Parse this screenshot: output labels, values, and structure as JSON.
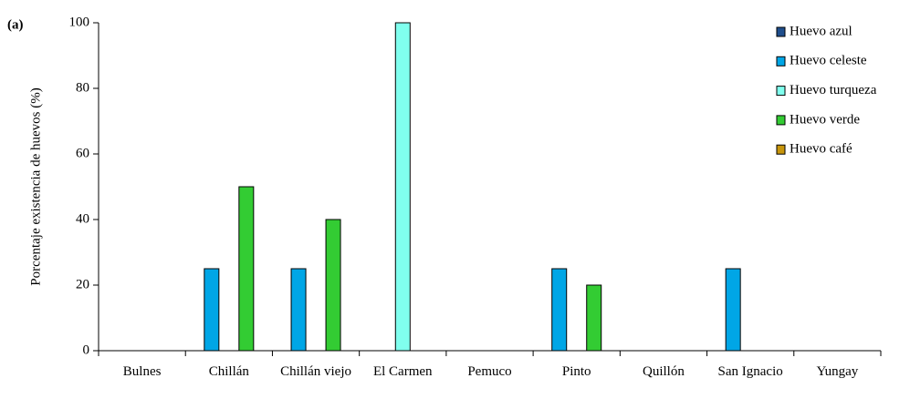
{
  "chart_data": {
    "type": "bar",
    "label": "(a)",
    "ylabel": "Porcentaje existencia de huevos (%)",
    "categories": [
      "Bulnes",
      "Chillán",
      "Chillán viejo",
      "El Carmen",
      "Pemuco",
      "Pinto",
      "Quillón",
      "San Ignacio",
      "Yungay"
    ],
    "series": [
      {
        "name": "Huevo azul",
        "color": "#1f4e8c",
        "values": [
          0,
          0,
          0,
          0,
          0,
          0,
          0,
          0,
          0
        ]
      },
      {
        "name": "Huevo celeste",
        "color": "#00a6e6",
        "values": [
          0,
          25,
          25,
          0,
          0,
          25,
          0,
          25,
          0
        ]
      },
      {
        "name": "Huevo turqueza",
        "color": "#80ffee",
        "values": [
          0,
          0,
          0,
          100,
          0,
          0,
          0,
          0,
          0
        ]
      },
      {
        "name": "Huevo verde",
        "color": "#33cc33",
        "values": [
          0,
          50,
          40,
          0,
          0,
          20,
          0,
          0,
          0
        ]
      },
      {
        "name": "Huevo café",
        "color": "#c8960c",
        "values": [
          0,
          0,
          0,
          0,
          0,
          0,
          0,
          0,
          0
        ]
      }
    ],
    "ylim": [
      0,
      100
    ],
    "yticks": [
      0,
      20,
      40,
      60,
      80,
      100
    ],
    "legend": "upper right"
  }
}
